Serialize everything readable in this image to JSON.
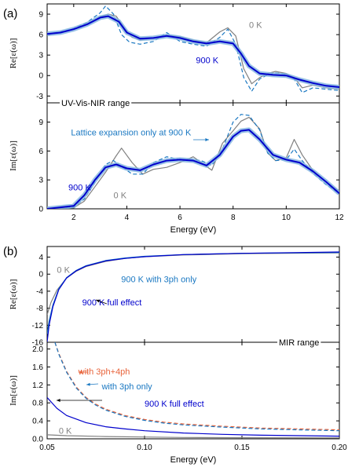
{
  "colors": {
    "gray": "#808080",
    "blue": "#0000cc",
    "teal": "#1a78c2",
    "orange": "#e8633a",
    "band": "#7fb3e0"
  },
  "chart_data": [
    {
      "panel": "(a)",
      "type": "line",
      "title": "",
      "xlabel": "Energy (eV)",
      "xlim": [
        1,
        12
      ],
      "x_ticks": [
        2,
        4,
        6,
        8,
        10,
        12
      ],
      "subplots": [
        {
          "ylabel": "Re[ε(ω)]",
          "ylim": [
            -4,
            10.5
          ],
          "y_ticks": [
            -3,
            0,
            3,
            6,
            9
          ],
          "annotations": [
            {
              "text": "0 K",
              "color": "#808080",
              "x": 8.6,
              "y": 7.0
            },
            {
              "text": "900 K",
              "color": "#0000cc",
              "x": 6.6,
              "y": 1.8
            }
          ],
          "series": [
            {
              "name": "0 K",
              "color": "#808080",
              "dash": "solid",
              "x": [
                1,
                1.5,
                2,
                2.5,
                3,
                3.3,
                3.6,
                3.9,
                4.2,
                4.5,
                5,
                5.5,
                6,
                6.5,
                7,
                7.5,
                7.8,
                8.1,
                8.4,
                8.7,
                9,
                9.3,
                9.6,
                10,
                10.3,
                10.6,
                11,
                11.5,
                12
              ],
              "y": [
                6.0,
                6.3,
                6.8,
                7.6,
                8.6,
                9.0,
                8.7,
                7.0,
                5.6,
                5.2,
                5.5,
                5.9,
                5.7,
                5.2,
                4.8,
                6.4,
                7.0,
                5.8,
                1.0,
                -1.2,
                -0.3,
                0.3,
                0.6,
                0.3,
                -0.3,
                -1.8,
                -1.4,
                -1.8,
                -2.0
              ]
            },
            {
              "name": "Lattice expansion only at 900 K",
              "color": "#1a78c2",
              "dash": "dashed",
              "x": [
                1,
                1.5,
                2,
                2.5,
                3,
                3.2,
                3.5,
                3.8,
                4.1,
                4.5,
                5,
                5.5,
                6,
                6.5,
                7,
                7.5,
                7.8,
                8.1,
                8.4,
                8.7,
                9,
                9.3,
                9.6,
                10,
                10.3,
                10.6,
                11,
                11.5,
                12
              ],
              "y": [
                6.1,
                6.4,
                6.9,
                7.8,
                9.2,
                10.2,
                9.0,
                6.0,
                4.9,
                4.6,
                5.0,
                6.3,
                5.0,
                4.6,
                4.3,
                5.6,
                6.8,
                4.6,
                -0.3,
                -2.3,
                -0.5,
                0.1,
                0.4,
                0.2,
                -0.5,
                -2.5,
                -1.8,
                -2.0,
                -2.2
              ]
            },
            {
              "name": "900 K",
              "color": "#0000cc",
              "dash": "solid",
              "width": 2,
              "band": true,
              "x": [
                1,
                1.5,
                2,
                2.5,
                3,
                3.3,
                3.7,
                4,
                4.5,
                5,
                5.5,
                6,
                6.5,
                7,
                7.5,
                8,
                8.3,
                8.6,
                9,
                9.5,
                10,
                10.5,
                11,
                11.5,
                12
              ],
              "y": [
                6.1,
                6.3,
                6.8,
                7.5,
                8.5,
                8.7,
                7.9,
                6.3,
                5.4,
                5.5,
                5.8,
                5.5,
                5.0,
                4.7,
                5.0,
                4.7,
                3.2,
                1.4,
                0.3,
                0.1,
                0.0,
                -0.6,
                -1.1,
                -1.5,
                -1.7
              ]
            }
          ]
        },
        {
          "ylabel": "Im[ε(ω)]",
          "ylim": [
            0,
            11
          ],
          "y_ticks": [
            0,
            3,
            6,
            9
          ],
          "range_label": "UV-Vis-NIR range",
          "annotations": [
            {
              "text": "Lattice expansion only at 900 K",
              "color": "#1a78c2",
              "x": 1.9,
              "y": 7.6
            },
            {
              "text": "900 K",
              "color": "#0000cc",
              "x": 1.8,
              "y": 1.9
            },
            {
              "text": "0 K",
              "color": "#808080",
              "x": 3.5,
              "y": 1.1
            }
          ],
          "series": [
            {
              "name": "0 K",
              "color": "#808080",
              "dash": "solid",
              "x": [
                1,
                2,
                2.4,
                2.8,
                3.2,
                3.6,
                3.8,
                4.2,
                4.6,
                5,
                5.5,
                6,
                6.5,
                6.8,
                7.2,
                7.6,
                8,
                8.3,
                8.6,
                9,
                9.3,
                9.6,
                10,
                10.3,
                10.6,
                11,
                11.5,
                12
              ],
              "y": [
                0.0,
                0.1,
                0.8,
                2.3,
                3.8,
                5.5,
                6.3,
                4.8,
                3.6,
                4.1,
                4.3,
                4.8,
                5.4,
                4.8,
                4.0,
                6.8,
                8.1,
                9.1,
                9.5,
                8.3,
                5.8,
                5.0,
                5.3,
                7.2,
                5.6,
                4.0,
                2.8,
                1.8
              ]
            },
            {
              "name": "Lattice expansion only at 900 K",
              "color": "#1a78c2",
              "dash": "dashed",
              "x": [
                1,
                2,
                2.4,
                2.8,
                3.2,
                3.5,
                3.8,
                4.2,
                4.6,
                5,
                5.5,
                6,
                6.5,
                6.8,
                7.2,
                7.6,
                8,
                8.3,
                8.6,
                9,
                9.3,
                9.6,
                10,
                10.3,
                10.6,
                11,
                11.5,
                12
              ],
              "y": [
                0.0,
                0.2,
                1.0,
                2.8,
                4.6,
                5.0,
                4.4,
                3.6,
                3.6,
                4.8,
                5.4,
                5.1,
                5.1,
                5.0,
                4.5,
                6.2,
                9.0,
                9.8,
                9.7,
                8.2,
                5.8,
                5.0,
                5.1,
                6.2,
                5.0,
                3.7,
                2.5,
                1.6
              ]
            },
            {
              "name": "900 K",
              "color": "#0000cc",
              "dash": "solid",
              "width": 2,
              "band": true,
              "x": [
                1,
                2,
                2.4,
                2.8,
                3.2,
                3.6,
                4,
                4.5,
                5,
                5.5,
                6,
                6.5,
                7,
                7.5,
                8,
                8.3,
                8.6,
                9,
                9.5,
                10,
                10.5,
                11,
                11.5,
                12
              ],
              "y": [
                0.0,
                0.3,
                1.4,
                3.0,
                4.3,
                4.6,
                4.2,
                4.0,
                4.6,
                5.0,
                5.1,
                5.0,
                4.5,
                5.6,
                7.5,
                8.1,
                8.2,
                7.2,
                5.6,
                5.1,
                4.8,
                3.9,
                2.8,
                1.6
              ]
            }
          ]
        }
      ]
    },
    {
      "panel": "(b)",
      "type": "line",
      "title": "",
      "xlabel": "Energy (eV)",
      "xlim": [
        0.05,
        0.2
      ],
      "x_ticks": [
        0.05,
        0.1,
        0.15,
        0.2
      ],
      "x_tick_labels": [
        "0.05",
        "0.10",
        "0.15",
        "0.20"
      ],
      "subplots": [
        {
          "ylabel": "Re[ε(ω)]",
          "ylim": [
            -16,
            6.5
          ],
          "y_ticks": [
            -16,
            -12,
            -8,
            -4,
            0,
            4
          ],
          "annotations": [
            {
              "text": "0 K",
              "color": "#808080",
              "x": 0.055,
              "y": 0.3
            },
            {
              "text": "900 K with 3ph only",
              "color": "#1a78c2",
              "x": 0.088,
              "y": -1.9
            },
            {
              "text": "900 K full effect",
              "color": "#0000cc",
              "x": 0.068,
              "y": -7.3
            }
          ],
          "series": [
            {
              "name": "0 K",
              "color": "#808080",
              "dash": "solid",
              "x": [
                0.05,
                0.052,
                0.055,
                0.06,
                0.065,
                0.07,
                0.08,
                0.09,
                0.1,
                0.12,
                0.15,
                0.2
              ],
              "y": [
                -9.5,
                -6.6,
                -3.8,
                -0.9,
                0.7,
                1.8,
                3.0,
                3.7,
                4.1,
                4.5,
                4.8,
                5.0
              ]
            },
            {
              "name": "900 K with 3ph only",
              "color": "#1a78c2",
              "dash": "solid",
              "x": [
                0.05,
                0.051,
                0.053,
                0.056,
                0.06,
                0.065,
                0.07,
                0.08,
                0.09,
                0.1,
                0.12,
                0.15,
                0.2
              ],
              "y": [
                -14.0,
                -11.0,
                -7.2,
                -3.4,
                -0.8,
                0.9,
                2.0,
                3.2,
                3.8,
                4.2,
                4.6,
                4.9,
                5.1
              ]
            },
            {
              "name": "900 K full effect",
              "color": "#0000cc",
              "dash": "solid",
              "x": [
                0.05,
                0.051,
                0.053,
                0.056,
                0.06,
                0.065,
                0.07,
                0.08,
                0.09,
                0.1,
                0.12,
                0.15,
                0.2
              ],
              "y": [
                -15.9,
                -12.0,
                -7.6,
                -3.6,
                -0.9,
                0.8,
                1.9,
                3.1,
                3.7,
                4.1,
                4.6,
                4.9,
                5.2
              ]
            }
          ]
        },
        {
          "ylabel": "Im[ε(ω)]",
          "ylim": [
            0,
            2.15
          ],
          "y_ticks": [
            0.0,
            0.4,
            0.8,
            1.2,
            1.6,
            2.0
          ],
          "y_tick_labels": [
            "0.0",
            "0.4",
            "0.8",
            "1.2",
            "1.6",
            "2.0"
          ],
          "range_label": "MIR range",
          "annotations": [
            {
              "text": "with 3ph+4ph",
              "color": "#e8633a",
              "x": 0.066,
              "y": 1.43
            },
            {
              "text": "with 3ph only",
              "color": "#1a78c2",
              "x": 0.078,
              "y": 1.1
            },
            {
              "text": "900 K full effect",
              "color": "#0000cc",
              "x": 0.1,
              "y": 0.72
            },
            {
              "text": "0 K",
              "color": "#808080",
              "x": 0.056,
              "y": 0.11
            }
          ],
          "series": [
            {
              "name": "with 3ph+4ph",
              "color": "#e8633a",
              "dash": "dashed",
              "x": [
                0.054,
                0.056,
                0.06,
                0.065,
                0.07,
                0.075,
                0.08,
                0.09,
                0.1,
                0.11,
                0.12,
                0.14,
                0.16,
                0.18,
                0.2
              ],
              "y": [
                2.15,
                1.9,
                1.5,
                1.15,
                0.92,
                0.77,
                0.66,
                0.52,
                0.43,
                0.37,
                0.33,
                0.28,
                0.24,
                0.22,
                0.2
              ]
            },
            {
              "name": "with 3ph only",
              "color": "#1a78c2",
              "dash": "dashed",
              "x": [
                0.054,
                0.056,
                0.06,
                0.065,
                0.07,
                0.075,
                0.08,
                0.09,
                0.1,
                0.11,
                0.12,
                0.14,
                0.16,
                0.18,
                0.2
              ],
              "y": [
                2.15,
                1.88,
                1.48,
                1.13,
                0.9,
                0.75,
                0.64,
                0.5,
                0.41,
                0.35,
                0.31,
                0.26,
                0.22,
                0.2,
                0.18
              ]
            },
            {
              "name": "900 K full effect",
              "color": "#0000cc",
              "dash": "solid",
              "x": [
                0.05,
                0.055,
                0.06,
                0.07,
                0.08,
                0.09,
                0.1,
                0.12,
                0.14,
                0.16,
                0.18,
                0.2
              ],
              "y": [
                0.92,
                0.68,
                0.52,
                0.36,
                0.27,
                0.22,
                0.18,
                0.13,
                0.1,
                0.08,
                0.07,
                0.06
              ]
            },
            {
              "name": "0 K",
              "color": "#808080",
              "dash": "solid",
              "x": [
                0.05,
                0.06,
                0.08,
                0.1,
                0.12,
                0.15,
                0.2
              ],
              "y": [
                0.09,
                0.07,
                0.05,
                0.04,
                0.03,
                0.025,
                0.02
              ]
            }
          ]
        }
      ]
    }
  ]
}
